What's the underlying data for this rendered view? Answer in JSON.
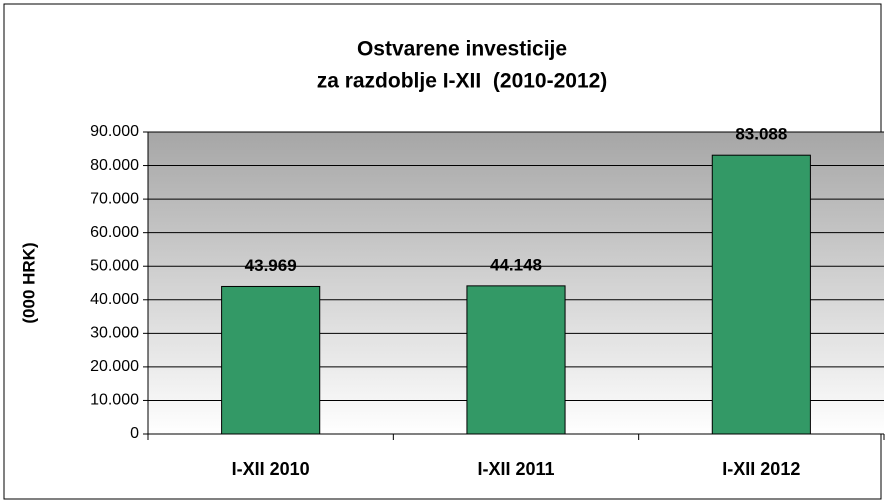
{
  "chart_data": {
    "type": "bar",
    "title": [
      "Ostvarene investicije",
      "za razdoblje I-XII  (2010-2012)"
    ],
    "ylabel": "(000 HRK)",
    "categories": [
      "I-XII 2010",
      "I-XII 2011",
      "I-XII 2012"
    ],
    "values": [
      43969,
      44148,
      83088
    ],
    "value_labels": [
      "43.969",
      "44.148",
      "83.088"
    ],
    "color": "#339966",
    "ylim": [
      0,
      90000
    ],
    "yticks": [
      0,
      {
        "value": 10000,
        "label": "10.000"
      },
      {
        "value": 20000,
        "label": "20.000"
      },
      {
        "value": 30000,
        "label": "30.000"
      },
      {
        "value": 40000,
        "label": "40.000"
      },
      {
        "value": 50000,
        "label": "50.000"
      },
      {
        "value": 60000,
        "label": "60.000"
      },
      {
        "value": 70000,
        "label": "70.000"
      },
      {
        "value": 80000,
        "label": "80.000"
      },
      {
        "value": 90000,
        "label": "90.000"
      }
    ],
    "grid": true
  }
}
